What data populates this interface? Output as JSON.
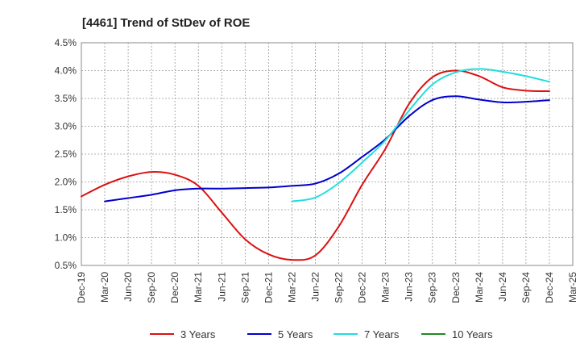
{
  "chart_data": {
    "type": "line",
    "title": "[4461]  Trend of StDev of ROE",
    "xlabel": "",
    "ylabel": "",
    "ylim": [
      0.5,
      4.5
    ],
    "yticks": [
      "0.5%",
      "1.0%",
      "1.5%",
      "2.0%",
      "2.5%",
      "3.0%",
      "3.5%",
      "4.0%",
      "4.5%"
    ],
    "categories": [
      "Dec-19",
      "Mar-20",
      "Jun-20",
      "Sep-20",
      "Dec-20",
      "Mar-21",
      "Jun-21",
      "Sep-21",
      "Dec-21",
      "Mar-22",
      "Jun-22",
      "Sep-22",
      "Dec-22",
      "Mar-23",
      "Jun-23",
      "Sep-23",
      "Dec-23",
      "Mar-24",
      "Jun-24",
      "Sep-24",
      "Dec-24",
      "Mar-25"
    ],
    "grid": true,
    "legend_position": "bottom",
    "series": [
      {
        "name": "3 Years",
        "color": "#dd1111",
        "values": [
          1.74,
          1.95,
          2.1,
          2.18,
          2.13,
          1.93,
          1.45,
          0.97,
          0.7,
          0.6,
          0.68,
          1.2,
          1.95,
          2.6,
          3.4,
          3.88,
          4.0,
          3.9,
          3.7,
          3.64,
          3.63,
          null
        ]
      },
      {
        "name": "5 Years",
        "color": "#0000cc",
        "values": [
          null,
          1.65,
          1.71,
          1.77,
          1.85,
          1.88,
          1.88,
          1.89,
          1.9,
          1.93,
          1.97,
          2.15,
          2.45,
          2.77,
          3.18,
          3.47,
          3.54,
          3.48,
          3.43,
          3.44,
          3.47,
          null
        ]
      },
      {
        "name": "7 Years",
        "color": "#22dddd",
        "values": [
          null,
          null,
          null,
          null,
          null,
          null,
          null,
          null,
          null,
          1.65,
          1.72,
          1.98,
          2.35,
          2.75,
          3.28,
          3.75,
          3.97,
          4.03,
          3.98,
          3.9,
          3.8,
          null
        ]
      },
      {
        "name": "10 Years",
        "color": "#228822",
        "values": [
          null,
          null,
          null,
          null,
          null,
          null,
          null,
          null,
          null,
          null,
          null,
          null,
          null,
          null,
          null,
          null,
          null,
          null,
          null,
          null,
          null,
          null
        ]
      }
    ]
  }
}
